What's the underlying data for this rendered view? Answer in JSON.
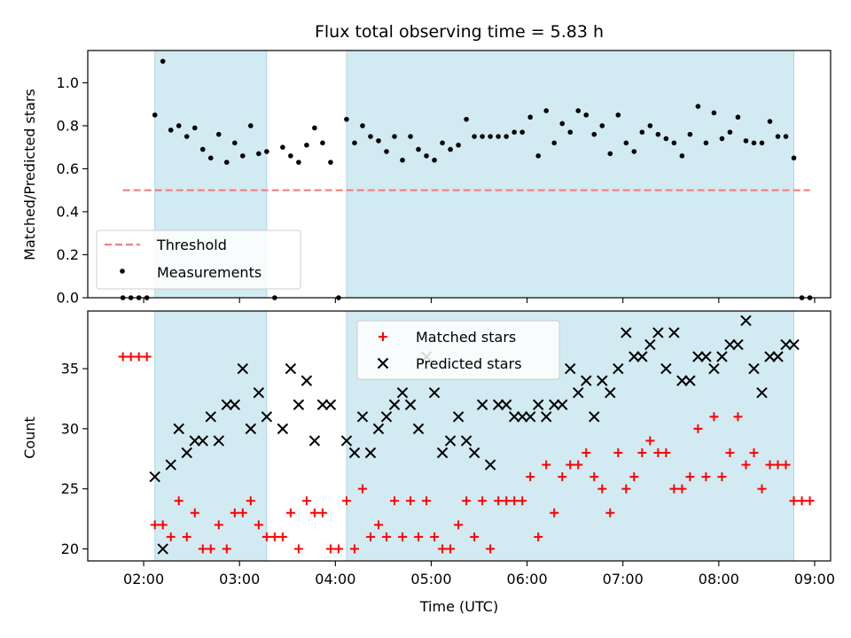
{
  "chart_data": {
    "title": "Flux total observing time = 5.83 h",
    "xlabel": "Time (UTC)",
    "x_ticks": [
      "02:00",
      "03:00",
      "04:00",
      "05:00",
      "06:00",
      "07:00",
      "08:00",
      "09:00"
    ],
    "x_range": [
      "01:25",
      "09:10"
    ],
    "shaded_intervals": [
      [
        "02:07",
        "03:17"
      ],
      [
        "04:07",
        "08:47"
      ]
    ],
    "shade_color": "#add8e6",
    "panels": [
      {
        "type": "scatter",
        "ylabel": "Matched/Predicted stars",
        "ylim": [
          0,
          1.15
        ],
        "y_ticks": [
          "0.0",
          "0.2",
          "0.4",
          "0.6",
          "0.8",
          "1.0"
        ],
        "threshold": {
          "name": "Threshold",
          "value": 0.5,
          "x_range": [
            "01:47",
            "08:57"
          ],
          "color": "#f08080"
        },
        "legend_position": "lower-left",
        "series": [
          {
            "name": "Measurements",
            "color": "#000000",
            "x": [
              "01:47",
              "01:52",
              "01:57",
              "02:02",
              "02:07",
              "02:12",
              "02:17",
              "02:22",
              "02:27",
              "02:32",
              "02:37",
              "02:42",
              "02:47",
              "02:52",
              "02:57",
              "03:02",
              "03:07",
              "03:12",
              "03:17",
              "03:22",
              "03:27",
              "03:32",
              "03:37",
              "03:42",
              "03:47",
              "03:52",
              "03:57",
              "04:02",
              "04:07",
              "04:12",
              "04:17",
              "04:22",
              "04:27",
              "04:32",
              "04:37",
              "04:42",
              "04:47",
              "04:52",
              "04:57",
              "05:02",
              "05:07",
              "05:12",
              "05:17",
              "05:22",
              "05:27",
              "05:32",
              "05:37",
              "05:42",
              "05:47",
              "05:52",
              "05:57",
              "06:02",
              "06:07",
              "06:12",
              "06:17",
              "06:22",
              "06:27",
              "06:32",
              "06:37",
              "06:42",
              "06:47",
              "06:52",
              "06:57",
              "07:02",
              "07:07",
              "07:12",
              "07:17",
              "07:22",
              "07:27",
              "07:32",
              "07:37",
              "07:42",
              "07:47",
              "07:52",
              "07:57",
              "08:02",
              "08:07",
              "08:12",
              "08:17",
              "08:22",
              "08:27",
              "08:32",
              "08:37",
              "08:42",
              "08:47",
              "08:52",
              "08:57"
            ],
            "y": [
              0.0,
              0.0,
              0.0,
              0.0,
              0.85,
              1.1,
              0.78,
              0.8,
              0.75,
              0.79,
              0.69,
              0.65,
              0.76,
              0.63,
              0.72,
              0.66,
              0.8,
              0.67,
              0.68,
              0.0,
              0.7,
              0.66,
              0.63,
              0.71,
              0.79,
              0.72,
              0.63,
              0.0,
              0.83,
              0.72,
              0.8,
              0.75,
              0.73,
              0.68,
              0.75,
              0.64,
              0.75,
              0.69,
              0.66,
              0.64,
              0.72,
              0.69,
              0.71,
              0.83,
              0.75,
              0.75,
              0.75,
              0.75,
              0.75,
              0.77,
              0.77,
              0.84,
              0.66,
              0.87,
              0.72,
              0.81,
              0.77,
              0.87,
              0.85,
              0.76,
              0.8,
              0.67,
              0.85,
              0.72,
              0.68,
              0.77,
              0.8,
              0.76,
              0.74,
              0.72,
              0.66,
              0.76,
              0.89,
              0.72,
              0.86,
              0.74,
              0.77,
              0.84,
              0.73,
              0.72,
              0.72,
              0.82,
              0.75,
              0.75,
              0.65,
              0.0,
              0.0
            ]
          }
        ]
      },
      {
        "type": "scatter",
        "ylabel": "Count",
        "ylim": [
          19,
          39.8
        ],
        "y_ticks": [
          "20",
          "25",
          "30",
          "35"
        ],
        "legend_position": "upper-center",
        "series": [
          {
            "name": "Matched stars",
            "marker": "plus",
            "color": "#ff0000",
            "x": [
              "01:47",
              "01:52",
              "01:57",
              "02:02",
              "02:07",
              "02:12",
              "02:17",
              "02:22",
              "02:27",
              "02:32",
              "02:37",
              "02:42",
              "02:47",
              "02:52",
              "02:57",
              "03:02",
              "03:07",
              "03:12",
              "03:17",
              "03:22",
              "03:27",
              "03:32",
              "03:37",
              "03:42",
              "03:47",
              "03:52",
              "03:57",
              "04:02",
              "04:07",
              "04:12",
              "04:17",
              "04:22",
              "04:27",
              "04:32",
              "04:37",
              "04:42",
              "04:47",
              "04:52",
              "04:57",
              "05:02",
              "05:07",
              "05:12",
              "05:17",
              "05:22",
              "05:27",
              "05:32",
              "05:37",
              "05:42",
              "05:47",
              "05:52",
              "05:57",
              "06:02",
              "06:07",
              "06:12",
              "06:17",
              "06:22",
              "06:27",
              "06:32",
              "06:37",
              "06:42",
              "06:47",
              "06:52",
              "06:57",
              "07:02",
              "07:07",
              "07:12",
              "07:17",
              "07:22",
              "07:27",
              "07:32",
              "07:37",
              "07:42",
              "07:47",
              "07:52",
              "07:57",
              "08:02",
              "08:07",
              "08:12",
              "08:17",
              "08:22",
              "08:27",
              "08:32",
              "08:37",
              "08:42",
              "08:47",
              "08:52",
              "08:57"
            ],
            "y": [
              36,
              36,
              36,
              36,
              22,
              22,
              21,
              24,
              21,
              23,
              20,
              20,
              22,
              20,
              23,
              23,
              24,
              22,
              21,
              21,
              21,
              23,
              20,
              24,
              23,
              23,
              20,
              20,
              24,
              20,
              25,
              21,
              22,
              21,
              24,
              21,
              24,
              21,
              24,
              21,
              20,
              20,
              22,
              24,
              21,
              24,
              20,
              24,
              24,
              24,
              24,
              26,
              21,
              27,
              23,
              26,
              27,
              27,
              28,
              26,
              25,
              23,
              28,
              25,
              26,
              28,
              29,
              28,
              28,
              25,
              25,
              26,
              30,
              26,
              31,
              26,
              28,
              31,
              27,
              28,
              25,
              27,
              27,
              27,
              24,
              24,
              24
            ]
          },
          {
            "name": "Predicted stars",
            "marker": "x",
            "color": "#000000",
            "x": [
              "02:07",
              "02:12",
              "02:17",
              "02:22",
              "02:27",
              "02:32",
              "02:37",
              "02:42",
              "02:47",
              "02:52",
              "02:57",
              "03:02",
              "03:07",
              "03:12",
              "03:17",
              "03:27",
              "03:32",
              "03:37",
              "03:42",
              "03:47",
              "03:52",
              "03:57",
              "04:07",
              "04:12",
              "04:17",
              "04:22",
              "04:27",
              "04:32",
              "04:37",
              "04:42",
              "04:47",
              "04:52",
              "04:57",
              "05:02",
              "05:07",
              "05:12",
              "05:17",
              "05:22",
              "05:27",
              "05:32",
              "05:37",
              "05:42",
              "05:47",
              "05:52",
              "05:57",
              "06:02",
              "06:07",
              "06:12",
              "06:17",
              "06:22",
              "06:27",
              "06:32",
              "06:37",
              "06:42",
              "06:47",
              "06:52",
              "06:57",
              "07:02",
              "07:07",
              "07:12",
              "07:17",
              "07:22",
              "07:27",
              "07:32",
              "07:37",
              "07:42",
              "07:47",
              "07:52",
              "07:57",
              "08:02",
              "08:07",
              "08:12",
              "08:17",
              "08:22",
              "08:27",
              "08:32",
              "08:37",
              "08:42",
              "08:47"
            ],
            "y": [
              26,
              20,
              27,
              30,
              28,
              29,
              29,
              31,
              29,
              32,
              32,
              35,
              30,
              33,
              31,
              30,
              35,
              32,
              34,
              29,
              32,
              32,
              29,
              28,
              31,
              28,
              30,
              31,
              32,
              33,
              32,
              30,
              36,
              33,
              28,
              29,
              31,
              29,
              28,
              32,
              27,
              32,
              32,
              31,
              31,
              31,
              32,
              31,
              32,
              32,
              35,
              33,
              34,
              31,
              34,
              33,
              35,
              38,
              36,
              36,
              37,
              38,
              35,
              38,
              34,
              34,
              36,
              36,
              35,
              36,
              37,
              37,
              39,
              35,
              33,
              36,
              36,
              37,
              37
            ]
          }
        ]
      }
    ]
  }
}
